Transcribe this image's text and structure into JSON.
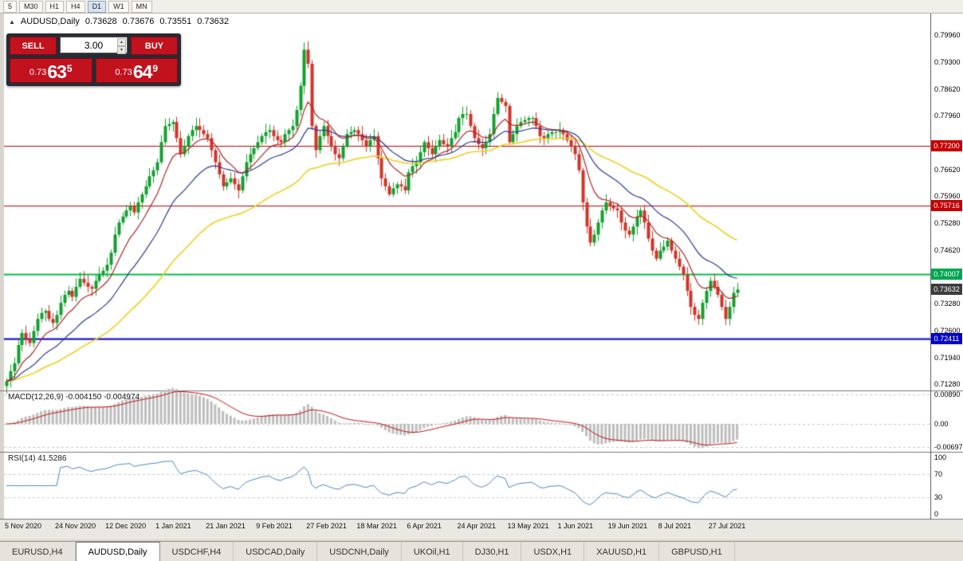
{
  "toolbar": {
    "timeframes": [
      "5",
      "M30",
      "H1",
      "H4",
      "D1",
      "W1",
      "MN"
    ],
    "active_timeframe": "D1"
  },
  "chart": {
    "symbol_title": "AUDUSD,Daily",
    "ohlc": {
      "open": "0.73628",
      "high": "0.73676",
      "low": "0.73551",
      "close": "0.73632"
    }
  },
  "trade_panel": {
    "sell_label": "SELL",
    "buy_label": "BUY",
    "volume": "3.00",
    "sell_price": {
      "base": "0.73",
      "big": "63",
      "sup": "5"
    },
    "buy_price": {
      "base": "0.73",
      "big": "64",
      "sup": "9"
    }
  },
  "price_axis": {
    "labels": [
      "0.79960",
      "0.79300",
      "0.78620",
      "0.77960",
      "0.76620",
      "0.75960",
      "0.75280",
      "0.74620",
      "0.73280",
      "0.72600",
      "0.71940",
      "0.71280"
    ],
    "badges": [
      {
        "text": "0.77200",
        "color": "#c40000"
      },
      {
        "text": "0.75716",
        "color": "#c40000"
      },
      {
        "text": "0.74007",
        "color": "#00a650"
      },
      {
        "text": "0.73632",
        "color": "#3c3c3c"
      },
      {
        "text": "0.72411",
        "color": "#0000c8"
      }
    ]
  },
  "indicators": {
    "macd": {
      "label": "MACD(12,26,9)",
      "values": "-0.004150 -0.004974",
      "axis": [
        "0.00890",
        "0.00",
        "-0.00697"
      ],
      "levels": [
        0.0089,
        0,
        -0.00697
      ]
    },
    "rsi": {
      "label": "RSI(14)",
      "value": "41.5286",
      "axis": [
        "100",
        "70",
        "30",
        "0"
      ],
      "levels": [
        70,
        30
      ]
    }
  },
  "tabs": {
    "items": [
      "EURUSD,H4",
      "AUDUSD,Daily",
      "USDCHF,H4",
      "USDCAD,Daily",
      "USDCNH,Daily",
      "UKOil,H1",
      "DJ30,H1",
      "USDX,H1",
      "XAUUSD,H1",
      "GBPUSD,H1"
    ],
    "active": "AUDUSD,Daily"
  },
  "chart_data": {
    "type": "candlestick",
    "symbol": "AUDUSD",
    "period": "Daily",
    "y_range": [
      0.7114,
      0.8048
    ],
    "x_labels": [
      "5 Nov 2020",
      "24 Nov 2020",
      "12 Dec 2020",
      "1 Jan 2021",
      "21 Jan 2021",
      "9 Feb 2021",
      "27 Feb 2021",
      "18 Mar 2021",
      "6 Apr 2021",
      "24 Apr 2021",
      "13 May 2021",
      "1 Jun 2021",
      "19 Jun 2021",
      "8 Jul 2021",
      "27 Jul 2021"
    ],
    "candles_per_label": 13,
    "closes": [
      0.7135,
      0.716,
      0.718,
      0.7225,
      0.7255,
      0.724,
      0.723,
      0.726,
      0.729,
      0.7305,
      0.731,
      0.729,
      0.728,
      0.73,
      0.733,
      0.735,
      0.736,
      0.7345,
      0.737,
      0.739,
      0.738,
      0.737,
      0.7365,
      0.7385,
      0.74,
      0.741,
      0.7425,
      0.7455,
      0.75,
      0.753,
      0.7545,
      0.756,
      0.757,
      0.7555,
      0.758,
      0.76,
      0.762,
      0.7645,
      0.766,
      0.768,
      0.773,
      0.777,
      0.7775,
      0.778,
      0.774,
      0.77,
      0.772,
      0.7745,
      0.776,
      0.777,
      0.776,
      0.775,
      0.774,
      0.771,
      0.768,
      0.765,
      0.762,
      0.763,
      0.764,
      0.7625,
      0.761,
      0.7645,
      0.768,
      0.77,
      0.7715,
      0.773,
      0.7745,
      0.7755,
      0.776,
      0.7745,
      0.7735,
      0.773,
      0.775,
      0.776,
      0.777,
      0.781,
      0.787,
      0.796,
      0.7925,
      0.777,
      0.771,
      0.7745,
      0.777,
      0.7745,
      0.772,
      0.77,
      0.769,
      0.772,
      0.775,
      0.7755,
      0.776,
      0.775,
      0.7735,
      0.772,
      0.7735,
      0.7745,
      0.769,
      0.764,
      0.762,
      0.76,
      0.7615,
      0.7625,
      0.762,
      0.761,
      0.7655,
      0.767,
      0.768,
      0.7705,
      0.773,
      0.7715,
      0.77,
      0.772,
      0.7735,
      0.7725,
      0.772,
      0.774,
      0.7755,
      0.779,
      0.78,
      0.78,
      0.777,
      0.774,
      0.7725,
      0.7715,
      0.773,
      0.775,
      0.78,
      0.784,
      0.783,
      0.782,
      0.773,
      0.775,
      0.777,
      0.778,
      0.7785,
      0.779,
      0.779,
      0.777,
      0.7745,
      0.774,
      0.775,
      0.7755,
      0.7755,
      0.776,
      0.775,
      0.7735,
      0.772,
      0.77,
      0.766,
      0.758,
      0.752,
      0.748,
      0.75,
      0.753,
      0.756,
      0.758,
      0.757,
      0.7565,
      0.756,
      0.753,
      0.751,
      0.75,
      0.752,
      0.7545,
      0.756,
      0.753,
      0.749,
      0.746,
      0.744,
      0.746,
      0.747,
      0.7485,
      0.746,
      0.744,
      0.742,
      0.74,
      0.736,
      0.732,
      0.73,
      0.729,
      0.733,
      0.736,
      0.7385,
      0.737,
      0.735,
      0.732,
      0.729,
      0.732,
      0.7355,
      0.73632
    ],
    "hlines": [
      {
        "price": 0.772,
        "color": "#c40000",
        "width": 1
      },
      {
        "price": 0.75716,
        "color": "#c40000",
        "width": 1
      },
      {
        "price": 0.74007,
        "color": "#00c040",
        "width": 2
      },
      {
        "price": 0.72411,
        "color": "#0000c8",
        "width": 2
      }
    ],
    "current_price": 0.73632,
    "ma": [
      {
        "period": 55,
        "color": "#ecd21c"
      },
      {
        "period": 24,
        "color": "#2a3a96"
      },
      {
        "period": 10,
        "color": "#b42222"
      }
    ],
    "colors": {
      "up": "#12a12e",
      "down": "#d23428",
      "macd_hist": "#bdbdbd",
      "macd_signal": "#c01414",
      "rsi": "#4a86c8"
    }
  }
}
